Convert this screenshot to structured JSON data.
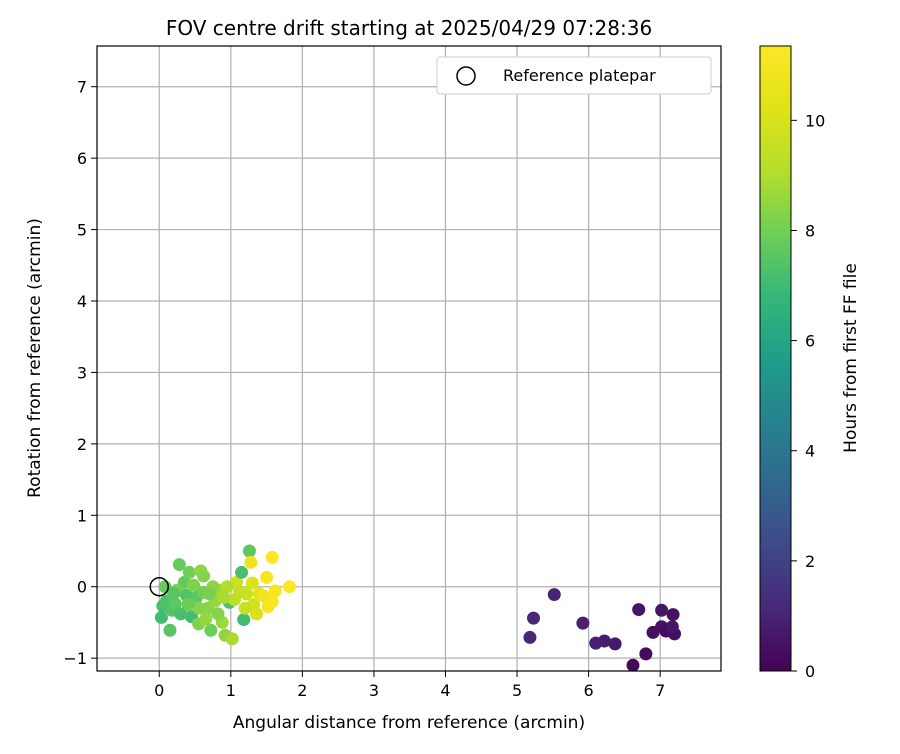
{
  "chart_data": {
    "type": "scatter",
    "title": "FOV centre drift starting at 2025/04/29 07:28:36",
    "xlabel": "Angular distance from reference (arcmin)",
    "ylabel": "Rotation from reference (arcmin)",
    "xlim": [
      -0.87,
      7.85
    ],
    "ylim": [
      -1.18,
      7.57
    ],
    "xticks": [
      "0",
      "1",
      "2",
      "3",
      "4",
      "5",
      "6",
      "7"
    ],
    "yticks": [
      "−1",
      "0",
      "1",
      "2",
      "3",
      "4",
      "5",
      "6",
      "7"
    ],
    "grid": true,
    "legend": {
      "placement": "top-right",
      "entries": [
        "Reference platepar"
      ]
    },
    "reference_point": {
      "x": 0,
      "y": 0
    },
    "colorbar": {
      "label": "Hours from first FF file",
      "range": [
        0,
        11.35
      ],
      "ticks": [
        "0",
        "2",
        "4",
        "6",
        "8",
        "10"
      ],
      "colormap": "viridis"
    },
    "points": [
      {
        "x": 6.62,
        "y": -1.1,
        "h": 0.2
      },
      {
        "x": 6.8,
        "y": -0.94,
        "h": 0.3
      },
      {
        "x": 6.9,
        "y": -0.64,
        "h": 0.4
      },
      {
        "x": 7.02,
        "y": -0.56,
        "h": 0.5
      },
      {
        "x": 7.08,
        "y": -0.62,
        "h": 0.3
      },
      {
        "x": 7.2,
        "y": -0.66,
        "h": 0.4
      },
      {
        "x": 7.17,
        "y": -0.56,
        "h": 0.6
      },
      {
        "x": 7.18,
        "y": -0.39,
        "h": 0.5
      },
      {
        "x": 7.02,
        "y": -0.33,
        "h": 0.6
      },
      {
        "x": 6.7,
        "y": -0.32,
        "h": 0.6
      },
      {
        "x": 6.37,
        "y": -0.8,
        "h": 0.7
      },
      {
        "x": 6.22,
        "y": -0.76,
        "h": 0.8
      },
      {
        "x": 6.1,
        "y": -0.79,
        "h": 0.9
      },
      {
        "x": 5.92,
        "y": -0.51,
        "h": 0.9
      },
      {
        "x": 5.52,
        "y": -0.11,
        "h": 1.0
      },
      {
        "x": 5.23,
        "y": -0.44,
        "h": 1.1
      },
      {
        "x": 5.18,
        "y": -0.71,
        "h": 1.1
      },
      {
        "x": 0.05,
        "y": -0.27,
        "h": 7.2
      },
      {
        "x": 0.03,
        "y": -0.43,
        "h": 7.0
      },
      {
        "x": 0.15,
        "y": -0.61,
        "h": 7.5
      },
      {
        "x": 0.1,
        "y": -0.2,
        "h": 7.3
      },
      {
        "x": 0.18,
        "y": -0.33,
        "h": 7.4
      },
      {
        "x": 0.22,
        "y": -0.24,
        "h": 7.6
      },
      {
        "x": 0.28,
        "y": 0.31,
        "h": 7.8
      },
      {
        "x": 0.35,
        "y": 0.06,
        "h": 7.7
      },
      {
        "x": 0.42,
        "y": 0.2,
        "h": 8.0
      },
      {
        "x": 0.45,
        "y": -0.42,
        "h": 7.1
      },
      {
        "x": 0.52,
        "y": -0.15,
        "h": 7.6
      },
      {
        "x": 0.58,
        "y": 0.22,
        "h": 8.5
      },
      {
        "x": 0.62,
        "y": 0.15,
        "h": 8.3
      },
      {
        "x": 0.55,
        "y": -0.52,
        "h": 8.2
      },
      {
        "x": 0.68,
        "y": -0.3,
        "h": 8.4
      },
      {
        "x": 0.72,
        "y": -0.61,
        "h": 7.9
      },
      {
        "x": 0.78,
        "y": -0.2,
        "h": 8.6
      },
      {
        "x": 0.85,
        "y": -0.05,
        "h": 8.8
      },
      {
        "x": 0.88,
        "y": -0.5,
        "h": 8.7
      },
      {
        "x": 0.92,
        "y": -0.68,
        "h": 8.5
      },
      {
        "x": 0.98,
        "y": -0.22,
        "h": 7.3
      },
      {
        "x": 1.02,
        "y": -0.73,
        "h": 8.9
      },
      {
        "x": 1.08,
        "y": 0.06,
        "h": 9.8
      },
      {
        "x": 1.15,
        "y": 0.2,
        "h": 7.2
      },
      {
        "x": 1.18,
        "y": -0.46,
        "h": 7.0
      },
      {
        "x": 1.22,
        "y": -0.1,
        "h": 9.7
      },
      {
        "x": 1.26,
        "y": 0.5,
        "h": 7.6
      },
      {
        "x": 1.28,
        "y": 0.34,
        "h": 10.8
      },
      {
        "x": 1.32,
        "y": -0.25,
        "h": 9.9
      },
      {
        "x": 1.36,
        "y": -0.38,
        "h": 10.0
      },
      {
        "x": 1.4,
        "y": -0.1,
        "h": 10.3
      },
      {
        "x": 1.46,
        "y": -0.13,
        "h": 10.9
      },
      {
        "x": 1.5,
        "y": 0.13,
        "h": 11.0
      },
      {
        "x": 1.52,
        "y": -0.28,
        "h": 11.2
      },
      {
        "x": 1.58,
        "y": 0.41,
        "h": 11.3
      },
      {
        "x": 1.62,
        "y": -0.06,
        "h": 11.1
      },
      {
        "x": 1.58,
        "y": -0.21,
        "h": 11.0
      },
      {
        "x": 1.82,
        "y": 0.0,
        "h": 11.3
      },
      {
        "x": 0.08,
        "y": 0.0,
        "h": 7.8
      },
      {
        "x": 0.25,
        "y": -0.05,
        "h": 8.1
      },
      {
        "x": 0.38,
        "y": -0.12,
        "h": 7.4
      },
      {
        "x": 0.48,
        "y": 0.02,
        "h": 8.2
      },
      {
        "x": 0.62,
        "y": -0.08,
        "h": 8.0
      },
      {
        "x": 0.75,
        "y": 0.0,
        "h": 8.4
      },
      {
        "x": 0.82,
        "y": -0.38,
        "h": 8.3
      },
      {
        "x": 0.95,
        "y": 0.0,
        "h": 9.0
      },
      {
        "x": 1.05,
        "y": -0.18,
        "h": 9.3
      },
      {
        "x": 1.12,
        "y": -0.08,
        "h": 9.5
      },
      {
        "x": 0.3,
        "y": -0.38,
        "h": 7.2
      },
      {
        "x": 0.65,
        "y": -0.45,
        "h": 8.6
      },
      {
        "x": 0.7,
        "y": -0.1,
        "h": 8.1
      },
      {
        "x": 0.55,
        "y": -0.3,
        "h": 8.3
      },
      {
        "x": 0.4,
        "y": -0.25,
        "h": 7.9
      },
      {
        "x": 0.9,
        "y": -0.15,
        "h": 8.9
      },
      {
        "x": 1.2,
        "y": -0.3,
        "h": 9.6
      },
      {
        "x": 1.3,
        "y": 0.05,
        "h": 10.1
      },
      {
        "x": 0.2,
        "y": -0.1,
        "h": 7.5
      }
    ]
  }
}
